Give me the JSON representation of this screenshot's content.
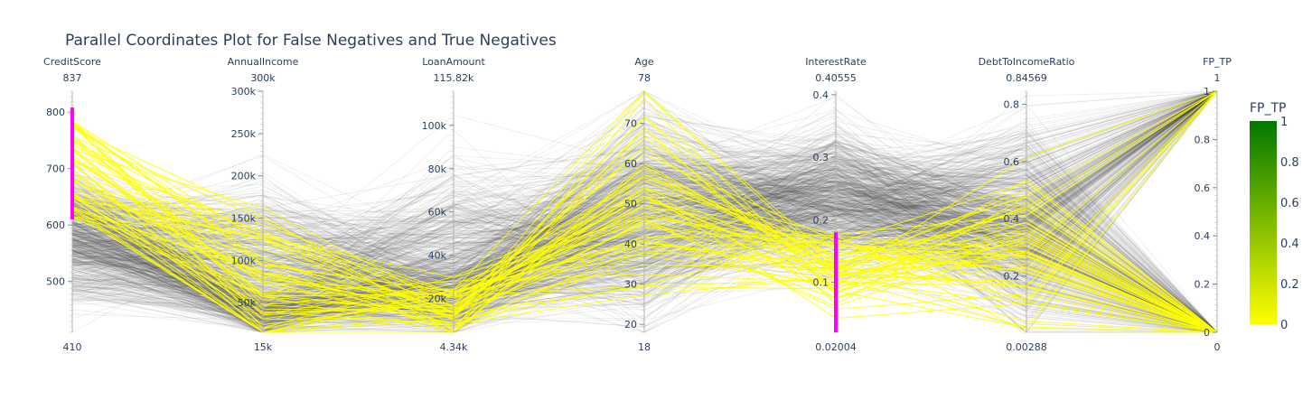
{
  "chart_data": {
    "type": "parallel_coordinates",
    "title": "Parallel Coordinates Plot for False Negatives and True Negatives",
    "dimensions": [
      {
        "name": "CreditScore",
        "range": [
          410,
          837
        ],
        "min_label": "410",
        "max_label": "837",
        "ticks": [
          {
            "value": 500,
            "label": "500"
          },
          {
            "value": 600,
            "label": "600"
          },
          {
            "value": 700,
            "label": "700"
          },
          {
            "value": 800,
            "label": "800"
          }
        ],
        "constraint": [
          610,
          808
        ]
      },
      {
        "name": "AnnualIncome",
        "range": [
          15000,
          300000
        ],
        "min_label": "15k",
        "max_label": "300k",
        "ticks": [
          {
            "value": 50000,
            "label": "50k"
          },
          {
            "value": 100000,
            "label": "100k"
          },
          {
            "value": 150000,
            "label": "150k"
          },
          {
            "value": 200000,
            "label": "200k"
          },
          {
            "value": 250000,
            "label": "250k"
          },
          {
            "value": 300000,
            "label": "300k"
          }
        ]
      },
      {
        "name": "LoanAmount",
        "range": [
          4340,
          115820
        ],
        "min_label": "4.34k",
        "max_label": "115.82k",
        "ticks": [
          {
            "value": 20000,
            "label": "20k"
          },
          {
            "value": 40000,
            "label": "40k"
          },
          {
            "value": 60000,
            "label": "60k"
          },
          {
            "value": 80000,
            "label": "80k"
          },
          {
            "value": 100000,
            "label": "100k"
          }
        ]
      },
      {
        "name": "Age",
        "range": [
          18,
          78
        ],
        "min_label": "18",
        "max_label": "78",
        "ticks": [
          {
            "value": 20,
            "label": "20"
          },
          {
            "value": 30,
            "label": "30"
          },
          {
            "value": 40,
            "label": "40"
          },
          {
            "value": 50,
            "label": "50"
          },
          {
            "value": 60,
            "label": "60"
          },
          {
            "value": 70,
            "label": "70"
          }
        ]
      },
      {
        "name": "InterestRate",
        "range": [
          0.02004,
          0.40555
        ],
        "min_label": "0.02004",
        "max_label": "0.40555",
        "ticks": [
          {
            "value": 0.1,
            "label": "0.1"
          },
          {
            "value": 0.2,
            "label": "0.2"
          },
          {
            "value": 0.3,
            "label": "0.3"
          },
          {
            "value": 0.4,
            "label": "0.4"
          }
        ],
        "constraint": [
          0.02004,
          0.18
        ]
      },
      {
        "name": "DebtToIncomeRatio",
        "range": [
          0.00288,
          0.84569
        ],
        "min_label": "0.00288",
        "max_label": "0.84569",
        "ticks": [
          {
            "value": 0.2,
            "label": "0.2"
          },
          {
            "value": 0.4,
            "label": "0.4"
          },
          {
            "value": 0.6,
            "label": "0.6"
          },
          {
            "value": 0.8,
            "label": "0.8"
          }
        ]
      },
      {
        "name": "FP_TP",
        "range": [
          0,
          1
        ],
        "min_label": "0",
        "max_label": "1",
        "ticks": [
          {
            "value": 0,
            "label": "0"
          },
          {
            "value": 0.2,
            "label": "0.2"
          },
          {
            "value": 0.4,
            "label": "0.4"
          },
          {
            "value": 0.6,
            "label": "0.6"
          },
          {
            "value": 0.8,
            "label": "0.8"
          },
          {
            "value": 1,
            "label": "1"
          }
        ]
      }
    ],
    "colorbar": {
      "title": "FP_TP",
      "range": [
        0,
        1
      ],
      "ticks": [
        {
          "value": 0,
          "label": "0"
        },
        {
          "value": 0.2,
          "label": "0.2"
        },
        {
          "value": 0.4,
          "label": "0.4"
        },
        {
          "value": 0.6,
          "label": "0.6"
        },
        {
          "value": 0.8,
          "label": "0.8"
        },
        {
          "value": 1,
          "label": "1"
        }
      ],
      "colorscale": [
        "#ffff00",
        "#007700"
      ]
    },
    "colors": {
      "highlight": "#ffff00",
      "context": "#444444",
      "constraint": "#ff00ff",
      "axis": "#b0b0b0",
      "text": "#2a3f5f"
    }
  }
}
